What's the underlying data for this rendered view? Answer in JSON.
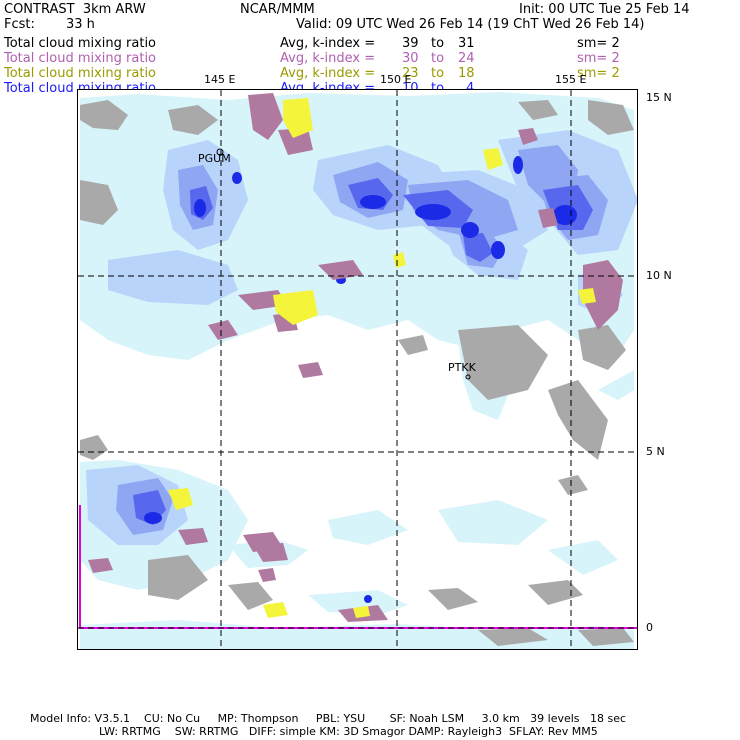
{
  "header": {
    "model": "CONTRAST  3km ARW",
    "org": "NCAR/MMM",
    "init": "Init: 00 UTC Tue 25 Feb 14",
    "fcst_label": "Fcst:",
    "fcst_value": "33 h",
    "valid": "Valid: 09 UTC Wed 26 Feb 14 (19 ChT Wed 26 Feb 14)"
  },
  "fields": [
    {
      "name": "Total cloud mixing ratio",
      "stat": "Avg, k-index =",
      "from": "39",
      "to_word": "to",
      "to": "31",
      "sm": "sm= 2",
      "color": "#000000"
    },
    {
      "name": "Total cloud mixing ratio",
      "stat": "Avg, k-index =",
      "from": "30",
      "to_word": "to",
      "to": "24",
      "sm": "sm= 2",
      "color": "#b060b0"
    },
    {
      "name": "Total cloud mixing ratio",
      "stat": "Avg, k-index =",
      "from": "23",
      "to_word": "to",
      "to": "18",
      "sm": "sm= 2",
      "color": "#9a9a00"
    },
    {
      "name": "Total cloud mixing ratio",
      "stat": "Avg, k-index =",
      "from": "10",
      "to_word": "to",
      "to": "4",
      "sm": "",
      "color": "#1a1aff"
    }
  ],
  "map": {
    "lon_labels": [
      "145 E",
      "150 E",
      "155 E"
    ],
    "lat_labels": [
      "15 N",
      "10 N",
      "5 N",
      "0"
    ],
    "stations": [
      "PGUM",
      "PTKK"
    ],
    "colors": {
      "land": "#a9a9a9",
      "cloud_light": "#d6f4fa",
      "cloud_mid1": "#b9d4fb",
      "cloud_mid2": "#8fa6f3",
      "cloud_mid3": "#5767ee",
      "cloud_deep": "#1a2ae6",
      "kindex_violet": "#b07aa0",
      "kindex_yellow": "#f4f43a",
      "boundary": "#e000e0"
    }
  },
  "footer": {
    "line1": "Model Info: V3.5.1    CU: No Cu     MP: Thompson     PBL: YSU       SF: Noah LSM     3.0 km   39 levels   18 sec",
    "line2": "LW: RRTMG    SW: RRTMG   DIFF: simple KM: 3D Smagor DAMP: Rayleigh3  SFLAY: Rev MM5"
  }
}
